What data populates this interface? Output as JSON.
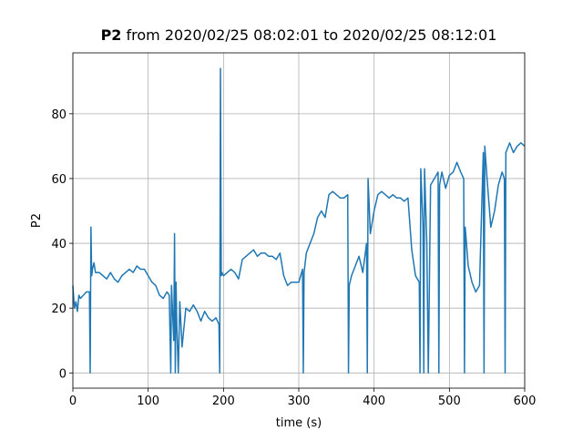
{
  "chart_data": {
    "type": "line",
    "title_name": "P2",
    "title": "from 2020/02/25 08:02:01 to 2020/02/25 08:12:01",
    "xlabel": "time (s)",
    "ylabel": "P2",
    "x": [
      0,
      2,
      4,
      6,
      8,
      10,
      14,
      18,
      22,
      23,
      24,
      25,
      26,
      28,
      30,
      35,
      40,
      45,
      50,
      55,
      60,
      65,
      70,
      75,
      80,
      85,
      90,
      95,
      100,
      105,
      110,
      115,
      120,
      125,
      128,
      130,
      131,
      132,
      134,
      135,
      136,
      137,
      138,
      140,
      142,
      145,
      150,
      155,
      160,
      165,
      170,
      175,
      180,
      185,
      190,
      194,
      195,
      196,
      197,
      198,
      200,
      205,
      210,
      215,
      220,
      225,
      230,
      235,
      240,
      245,
      250,
      255,
      260,
      265,
      270,
      275,
      280,
      285,
      290,
      295,
      300,
      305,
      306,
      307,
      310,
      315,
      320,
      325,
      330,
      335,
      340,
      345,
      350,
      355,
      360,
      365,
      366,
      367,
      370,
      375,
      380,
      385,
      390,
      391,
      392,
      395,
      400,
      405,
      410,
      415,
      420,
      425,
      430,
      435,
      440,
      445,
      450,
      455,
      460,
      461,
      462,
      465,
      466,
      467,
      470,
      472,
      475,
      480,
      485,
      486,
      487,
      490,
      495,
      500,
      505,
      510,
      515,
      519,
      520,
      521,
      525,
      530,
      535,
      540,
      545,
      546,
      547,
      550,
      555,
      560,
      565,
      570,
      573,
      574,
      575,
      580,
      585,
      590,
      595,
      600
    ],
    "series": [
      {
        "name": "P2",
        "color": "#1f77b4",
        "values": [
          27,
          20,
          22,
          19,
          24,
          23,
          24,
          25,
          25,
          0,
          45,
          30,
          32,
          34,
          31,
          31,
          30,
          29,
          31,
          29,
          28,
          30,
          31,
          32,
          31,
          33,
          32,
          32,
          30,
          28,
          27,
          24,
          23,
          25,
          24,
          0,
          27,
          21,
          10,
          43,
          0,
          28,
          15,
          0,
          22,
          8,
          20,
          19,
          21,
          19,
          16,
          19,
          17,
          16,
          17,
          15,
          0,
          94,
          30,
          31,
          30,
          31,
          32,
          31,
          29,
          35,
          36,
          37,
          38,
          36,
          37,
          37,
          36,
          36,
          35,
          37,
          30,
          27,
          28,
          28,
          28,
          32,
          0,
          31,
          37,
          40,
          43,
          48,
          50,
          48,
          55,
          56,
          55,
          54,
          54,
          55,
          0,
          27,
          30,
          33,
          36,
          31,
          40,
          0,
          60,
          43,
          50,
          55,
          56,
          55,
          54,
          55,
          54,
          54,
          53,
          54,
          38,
          30,
          28,
          0,
          63,
          45,
          0,
          63,
          40,
          0,
          58,
          60,
          62,
          0,
          58,
          62,
          57,
          61,
          62,
          65,
          62,
          60,
          0,
          45,
          33,
          28,
          25,
          27,
          68,
          0,
          70,
          60,
          45,
          50,
          58,
          62,
          60,
          0,
          68,
          71,
          68,
          70,
          71,
          70
        ]
      }
    ],
    "xlim": [
      0,
      600
    ],
    "ylim": [
      -4.7,
      98.8
    ],
    "xticks": [
      0,
      100,
      200,
      300,
      400,
      500,
      600
    ],
    "yticks": [
      0,
      20,
      40,
      60,
      80
    ],
    "grid": true
  }
}
